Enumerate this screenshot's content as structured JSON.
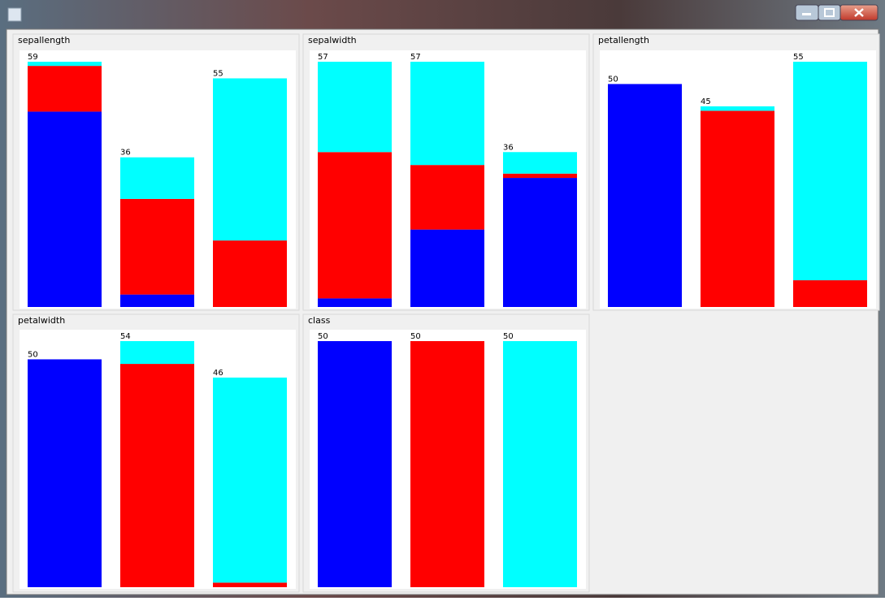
{
  "chart_data": [
    {
      "type": "bar",
      "stacked": true,
      "title": "sepallength",
      "totals": [
        59,
        36,
        55
      ],
      "series": [
        {
          "color": "#0000ff",
          "values": [
            47,
            3,
            0
          ]
        },
        {
          "color": "#ff0000",
          "values": [
            11,
            23,
            16
          ]
        },
        {
          "color": "#00ffff",
          "values": [
            1,
            10,
            39
          ]
        }
      ]
    },
    {
      "type": "bar",
      "stacked": true,
      "title": "sepalwidth",
      "totals": [
        57,
        57,
        36
      ],
      "series": [
        {
          "color": "#0000ff",
          "values": [
            2,
            18,
            30
          ]
        },
        {
          "color": "#ff0000",
          "values": [
            34,
            15,
            1
          ]
        },
        {
          "color": "#00ffff",
          "values": [
            21,
            24,
            5
          ]
        }
      ]
    },
    {
      "type": "bar",
      "stacked": true,
      "title": "petallength",
      "totals": [
        50,
        45,
        55
      ],
      "series": [
        {
          "color": "#0000ff",
          "values": [
            50,
            0,
            0
          ]
        },
        {
          "color": "#ff0000",
          "values": [
            0,
            44,
            6
          ]
        },
        {
          "color": "#00ffff",
          "values": [
            0,
            1,
            49
          ]
        }
      ]
    },
    {
      "type": "bar",
      "stacked": true,
      "title": "petalwidth",
      "totals": [
        50,
        54,
        46
      ],
      "series": [
        {
          "color": "#0000ff",
          "values": [
            50,
            0,
            0
          ]
        },
        {
          "color": "#ff0000",
          "values": [
            0,
            49,
            1
          ]
        },
        {
          "color": "#00ffff",
          "values": [
            0,
            5,
            45
          ]
        }
      ]
    },
    {
      "type": "bar",
      "stacked": true,
      "title": "class",
      "totals": [
        50,
        50,
        50
      ],
      "series": [
        {
          "color": "#0000ff",
          "values": [
            50,
            0,
            0
          ]
        },
        {
          "color": "#ff0000",
          "values": [
            0,
            50,
            0
          ]
        },
        {
          "color": "#00ffff",
          "values": [
            0,
            0,
            50
          ]
        }
      ]
    }
  ]
}
